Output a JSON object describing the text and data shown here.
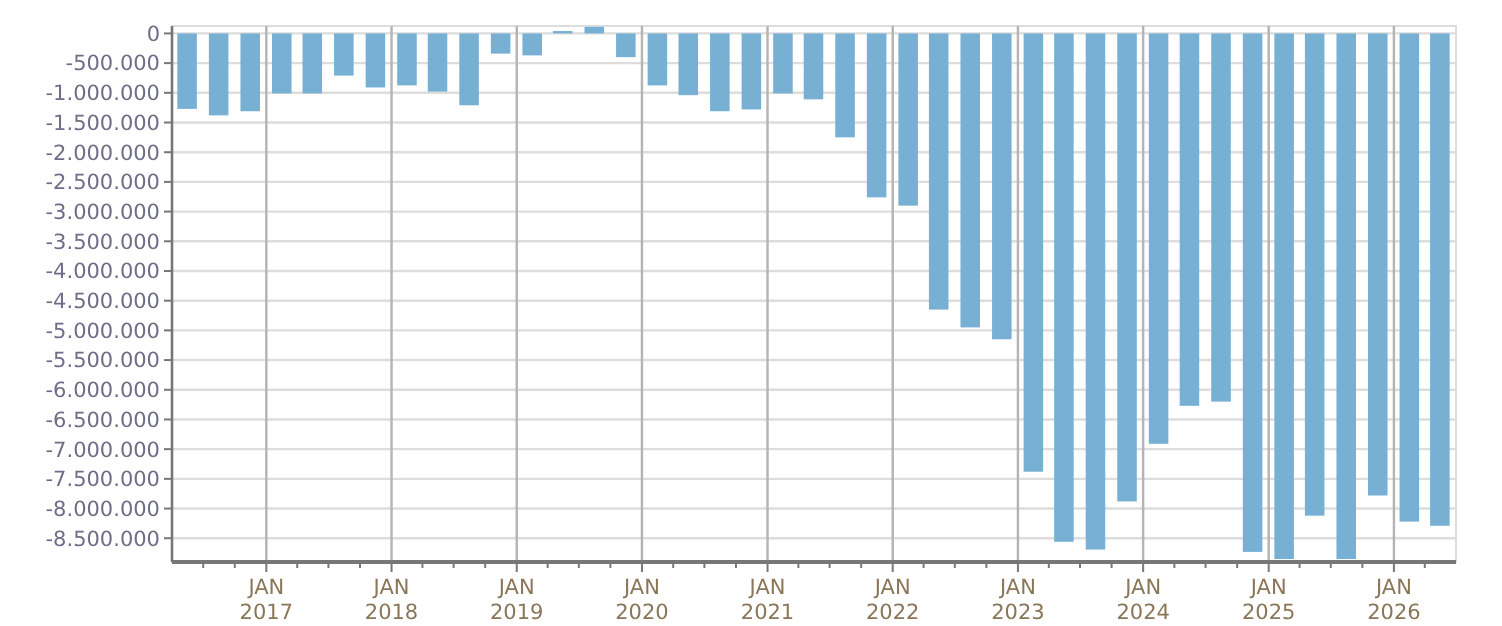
{
  "chart_data": {
    "type": "bar",
    "x": [
      "2016-05-15",
      "2016-08-15",
      "2016-11-15",
      "2017-02-15",
      "2017-05-15",
      "2017-08-15",
      "2017-11-15",
      "2018-02-15",
      "2018-05-15",
      "2018-08-15",
      "2018-11-15",
      "2019-02-15",
      "2019-05-15",
      "2019-08-15",
      "2019-11-15",
      "2020-02-15",
      "2020-05-15",
      "2020-08-15",
      "2020-11-15",
      "2021-02-15",
      "2021-05-15",
      "2021-08-15",
      "2021-11-15",
      "2022-02-15",
      "2022-05-15",
      "2022-08-15",
      "2022-11-15",
      "2023-02-15",
      "2023-05-15",
      "2023-08-15",
      "2023-11-15",
      "2024-02-15",
      "2024-05-15",
      "2024-08-15",
      "2024-11-15",
      "2025-02-15",
      "2025-05-15",
      "2025-08-15",
      "2025-11-15",
      "2026-02-15",
      "2026-05-15"
    ],
    "values": [
      -1270000,
      -1380000,
      -1310000,
      -1010000,
      -1010000,
      -710000,
      -910000,
      -875000,
      -980000,
      -1210000,
      -340000,
      -370000,
      40000,
      110000,
      -400000,
      -875000,
      -1040000,
      -1310000,
      -1280000,
      -1010000,
      -1110000,
      -1750000,
      -2760000,
      -2900000,
      -4650000,
      -4950000,
      -5150000,
      -7380000,
      -8560000,
      -8690000,
      -7880000,
      -6910000,
      -6270000,
      -6200000,
      -8730000,
      -8850000,
      -8120000,
      -8850000,
      -7780000,
      -8220000,
      -8290000
    ],
    "color": "#78b0d4",
    "xlim": [
      "2016-04-01",
      "2026-07-01"
    ],
    "xticks": [
      {
        "value": "2016-07-01",
        "label": null
      },
      {
        "value": "2016-10-01",
        "label": null
      },
      {
        "value": "2017-01-01",
        "label": "JAN\n2017"
      },
      {
        "value": "2017-04-01",
        "label": null
      },
      {
        "value": "2017-07-01",
        "label": null
      },
      {
        "value": "2017-10-01",
        "label": null
      },
      {
        "value": "2018-01-01",
        "label": "JAN\n2018"
      },
      {
        "value": "2018-04-01",
        "label": null
      },
      {
        "value": "2018-07-01",
        "label": null
      },
      {
        "value": "2018-10-01",
        "label": null
      },
      {
        "value": "2019-01-01",
        "label": "JAN\n2019"
      },
      {
        "value": "2019-04-01",
        "label": null
      },
      {
        "value": "2019-07-01",
        "label": null
      },
      {
        "value": "2019-10-01",
        "label": null
      },
      {
        "value": "2020-01-01",
        "label": "JAN\n2020"
      },
      {
        "value": "2020-04-01",
        "label": null
      },
      {
        "value": "2020-07-01",
        "label": null
      },
      {
        "value": "2020-10-01",
        "label": null
      },
      {
        "value": "2021-01-01",
        "label": "JAN\n2021"
      },
      {
        "value": "2021-04-01",
        "label": null
      },
      {
        "value": "2021-07-01",
        "label": null
      },
      {
        "value": "2021-10-01",
        "label": null
      },
      {
        "value": "2022-01-01",
        "label": "JAN\n2022"
      },
      {
        "value": "2022-04-01",
        "label": null
      },
      {
        "value": "2022-07-01",
        "label": null
      },
      {
        "value": "2022-10-01",
        "label": null
      },
      {
        "value": "2023-01-01",
        "label": "JAN\n2023"
      },
      {
        "value": "2023-04-01",
        "label": null
      },
      {
        "value": "2023-07-01",
        "label": null
      },
      {
        "value": "2023-10-01",
        "label": null
      },
      {
        "value": "2024-01-01",
        "label": "JAN\n2024"
      },
      {
        "value": "2024-04-01",
        "label": null
      },
      {
        "value": "2024-07-01",
        "label": null
      },
      {
        "value": "2024-10-01",
        "label": null
      },
      {
        "value": "2025-01-01",
        "label": "JAN\n2025"
      },
      {
        "value": "2025-04-01",
        "label": null
      },
      {
        "value": "2025-07-01",
        "label": null
      },
      {
        "value": "2025-10-01",
        "label": null
      },
      {
        "value": "2026-01-01",
        "label": "JAN\n2026"
      },
      {
        "value": "2026-04-01",
        "label": null
      }
    ],
    "ylim": [
      -8900000,
      125000
    ],
    "yticks": [
      {
        "value": 0,
        "label": "0"
      },
      {
        "value": -500000,
        "label": "-500.000"
      },
      {
        "value": -1000000,
        "label": "-1.000.000"
      },
      {
        "value": -1500000,
        "label": "-1.500.000"
      },
      {
        "value": -2000000,
        "label": "-2.000.000"
      },
      {
        "value": -2500000,
        "label": "-2.500.000"
      },
      {
        "value": -3000000,
        "label": "-3.000.000"
      },
      {
        "value": -3500000,
        "label": "-3.500.000"
      },
      {
        "value": -4000000,
        "label": "-4.000.000"
      },
      {
        "value": -4500000,
        "label": "-4.500.000"
      },
      {
        "value": -5000000,
        "label": "-5.000.000"
      },
      {
        "value": -5500000,
        "label": "-5.500.000"
      },
      {
        "value": -6000000,
        "label": "-6.000.000"
      },
      {
        "value": -6500000,
        "label": "-6.500.000"
      },
      {
        "value": -7000000,
        "label": "-7.000.000"
      },
      {
        "value": -7500000,
        "label": "-7.500.000"
      },
      {
        "value": -8000000,
        "label": "-8.000.000"
      },
      {
        "value": -8500000,
        "label": "-8.500.000"
      }
    ],
    "grid": true
  }
}
